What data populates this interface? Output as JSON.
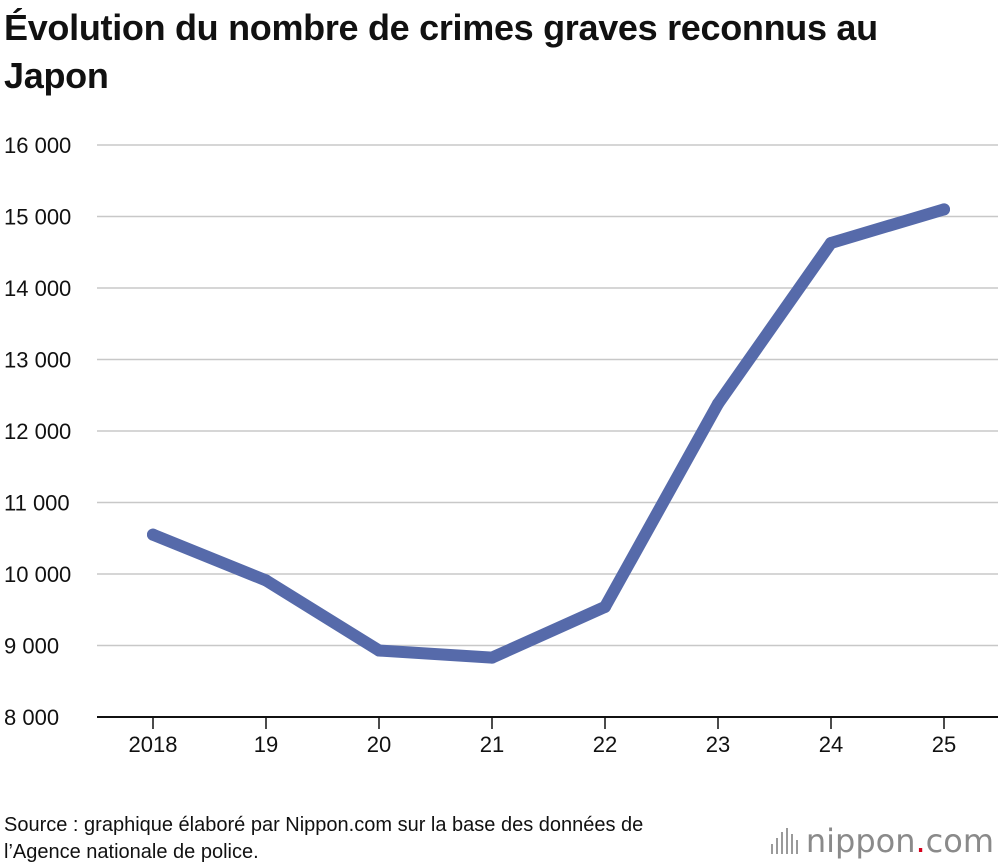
{
  "chart_data": {
    "type": "line",
    "title": "Évolution du nombre de crimes graves reconnus au Japon",
    "categories": [
      "2018",
      "19",
      "20",
      "21",
      "22",
      "23",
      "24",
      "25"
    ],
    "series": [
      {
        "values": [
          10550,
          9910,
          8930,
          8830,
          9540,
          12380,
          14630,
          15100
        ]
      }
    ],
    "ylim": [
      8000,
      16000
    ],
    "yticks": [
      8000,
      9000,
      10000,
      11000,
      12000,
      13000,
      14000,
      15000,
      16000
    ],
    "ytick_labels": [
      "8 000",
      "9 000",
      "10 000",
      "11 000",
      "12 000",
      "13 000",
      "14 000",
      "15 000",
      "16 000"
    ],
    "grid": true,
    "line_color": "#566aaa"
  },
  "footer": {
    "source": "Source : graphique élaboré par Nippon.com sur la base des données de l’Agence nationale de police."
  },
  "logo": {
    "name": "nippon",
    "dot": ".",
    "tld": "com"
  }
}
